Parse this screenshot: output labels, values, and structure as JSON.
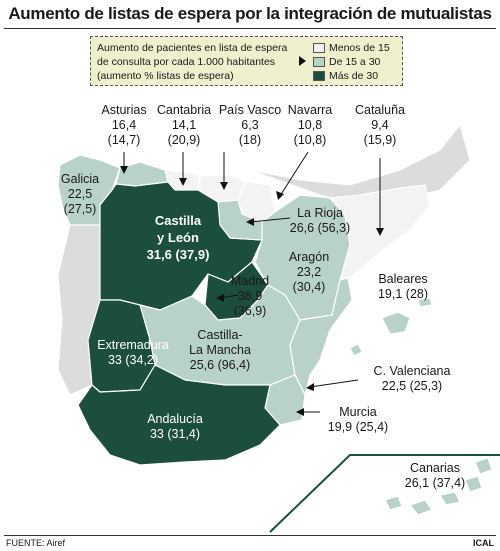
{
  "title": "Aumento de listas de espera por la integración de mutualistas",
  "legend": {
    "description": [
      "Aumento de pacientes en lista de espera",
      "de consulta por cada 1.000 habitantes",
      "(aumento % listas de espera)"
    ],
    "items": [
      {
        "label": "Menos de 15",
        "color": "#f3f3f3"
      },
      {
        "label": "De 15 a 30",
        "color": "#b9d2c8"
      },
      {
        "label": "Más de 30",
        "color": "#1b4e3c"
      }
    ]
  },
  "colors": {
    "sea": "#ffffff",
    "country": "#dcdcdc",
    "low": "#f3f3f3",
    "mid": "#b9d2c8",
    "high": "#1b4e3c",
    "border": "#ffffff"
  },
  "regions": [
    {
      "name": "Asturias",
      "value": "16,4",
      "pct": "(14,7)",
      "class": "mid"
    },
    {
      "name": "Cantabria",
      "value": "14,1",
      "pct": "(20,9)",
      "class": "low"
    },
    {
      "name": "País Vasco",
      "value": "6,3",
      "pct": "(18)",
      "class": "low"
    },
    {
      "name": "Navarra",
      "value": "10,8",
      "pct": "(10,8)",
      "class": "low"
    },
    {
      "name": "Cataluña",
      "value": "9,4",
      "pct": "(15,9)",
      "class": "low"
    },
    {
      "name": "Galicia",
      "value": "22,5",
      "pct": "(27,5)",
      "class": "mid"
    },
    {
      "name": "Castilla y León",
      "line1": "Castilla",
      "line2": "y León",
      "value_line": "31,6 (37,9)",
      "class": "high"
    },
    {
      "name": "La Rioja",
      "value_line": "26,6 (56,3)",
      "class": "mid"
    },
    {
      "name": "Aragón",
      "value": "23,2",
      "pct": "(30,4)",
      "class": "mid"
    },
    {
      "name": "Madrid",
      "value": "38,9",
      "pct": "(36,9)",
      "class": "high"
    },
    {
      "name": "Baleares",
      "value_line": "19,1 (28)",
      "class": "mid"
    },
    {
      "name": "Extremadura",
      "value_line": "33 (34,2)",
      "class": "high"
    },
    {
      "name": "Castilla-La Mancha",
      "line1": "Castilla-",
      "line2": "La Mancha",
      "value_line": "25,6 (96,4)",
      "class": "mid"
    },
    {
      "name": "C. Valenciana",
      "value_line": "22,5 (25,3)",
      "class": "mid"
    },
    {
      "name": "Andalucía",
      "value_line": "33 (31,4)",
      "class": "high"
    },
    {
      "name": "Murcia",
      "value_line": "19,9 (25,4)",
      "class": "mid"
    },
    {
      "name": "Canarias",
      "value_line": "26,1 (37,4)",
      "class": "mid"
    }
  ],
  "footer": {
    "source": "FUENTE: Airef",
    "brand": "ICAL"
  }
}
